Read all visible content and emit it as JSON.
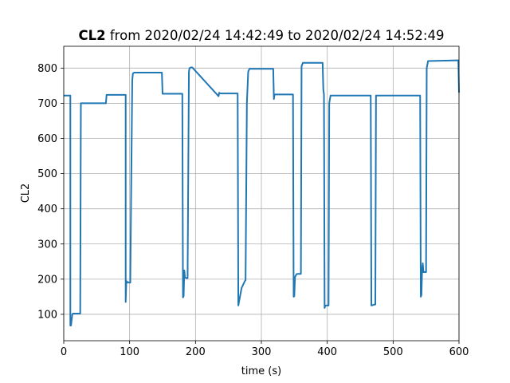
{
  "chart_data": {
    "type": "line",
    "title_bold": "CL2",
    "title_rest": " from 2020/02/24 14:42:49 to 2020/02/24 14:52:49",
    "xlabel": "time (s)",
    "ylabel": "CL2",
    "xlim": [
      0,
      600
    ],
    "ylim": [
      25,
      862
    ],
    "xticks": [
      0,
      100,
      200,
      300,
      400,
      500,
      600
    ],
    "yticks": [
      100,
      200,
      300,
      400,
      500,
      600,
      700,
      800
    ],
    "grid": true,
    "line_color": "#1f77b4",
    "series": [
      {
        "x": [
          0,
          10,
          10,
          11,
          13,
          14,
          25,
          26,
          64,
          65,
          94,
          94,
          95,
          96,
          97,
          100,
          101,
          104,
          105,
          107,
          149,
          150,
          180,
          181,
          182,
          183,
          184,
          186,
          188,
          190,
          191,
          193,
          195,
          235,
          236,
          237,
          264,
          265,
          270,
          275,
          276,
          278,
          280,
          282,
          318,
          319,
          320,
          348,
          349,
          350,
          351,
          352,
          354,
          360,
          361,
          363,
          393,
          394,
          395,
          396,
          397,
          398,
          402,
          403,
          405,
          466,
          467,
          472,
          473,
          474,
          541,
          542,
          543,
          544,
          545,
          546,
          550,
          551,
          553,
          598,
          599,
          600
        ],
        "y": [
          722,
          722,
          68,
          68,
          100,
          102,
          102,
          700,
          700,
          724,
          724,
          135,
          195,
          190,
          192,
          190,
          190,
          765,
          785,
          787,
          787,
          727,
          727,
          148,
          152,
          225,
          205,
          203,
          203,
          790,
          800,
          802,
          802,
          720,
          730,
          728,
          728,
          125,
          175,
          195,
          197,
          700,
          790,
          798,
          798,
          712,
          725,
          725,
          150,
          152,
          205,
          210,
          215,
          215,
          805,
          815,
          815,
          740,
          725,
          118,
          125,
          125,
          125,
          700,
          722,
          722,
          125,
          128,
          128,
          722,
          722,
          150,
          155,
          230,
          245,
          220,
          220,
          800,
          820,
          822,
          822,
          730
        ]
      }
    ]
  }
}
